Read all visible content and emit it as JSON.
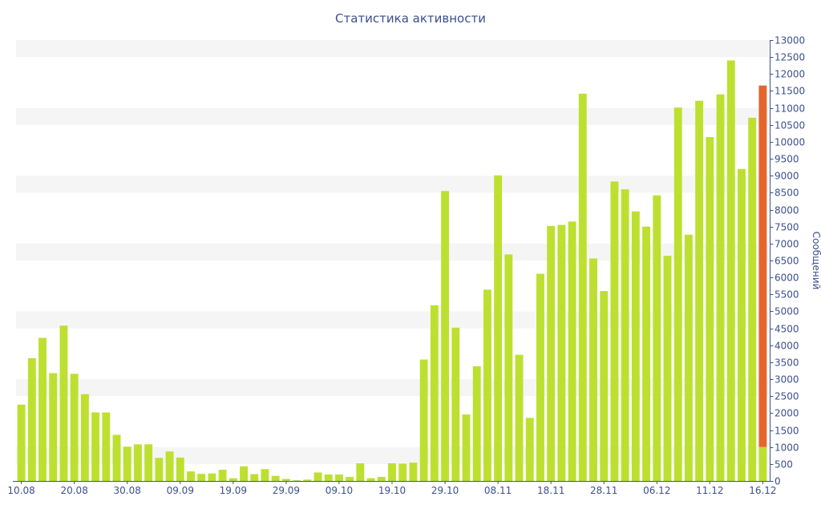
{
  "chart_data": {
    "type": "bar",
    "title": "Статистика активности",
    "xlabel": "",
    "ylabel": "Сообщений",
    "ylim": [
      0,
      13000
    ],
    "yticks": [
      0,
      500,
      1000,
      1500,
      2000,
      2500,
      3000,
      3500,
      4000,
      4500,
      5000,
      5500,
      6000,
      6500,
      7000,
      7500,
      8000,
      8500,
      9000,
      9500,
      10000,
      10500,
      11000,
      11500,
      12000,
      12500,
      13000
    ],
    "x_tick_labels": [
      "10.08",
      "20.08",
      "30.08",
      "09.09",
      "19.09",
      "29.09",
      "09.10",
      "19.10",
      "29.10",
      "08.11",
      "18.11",
      "28.11",
      "06.12",
      "11.12",
      "16.12"
    ],
    "x_tick_positions": [
      0,
      5,
      10,
      15,
      20,
      25,
      30,
      35,
      40,
      45,
      50,
      55,
      60,
      65,
      70
    ],
    "grid": "horizontal bands",
    "colors": {
      "bar": "#bde030",
      "highlight_base": "#bde030",
      "highlight_top": "#e5652d",
      "axis": "#3c4f8f",
      "band": "#f5f5f5"
    },
    "values": [
      2250,
      3620,
      4220,
      3180,
      4580,
      3160,
      2560,
      2020,
      2020,
      1360,
      1010,
      1080,
      1080,
      680,
      870,
      690,
      280,
      210,
      220,
      330,
      80,
      430,
      200,
      350,
      150,
      60,
      20,
      40,
      250,
      190,
      190,
      120,
      520,
      80,
      120,
      520,
      510,
      540,
      3580,
      5180,
      8550,
      4520,
      1960,
      3380,
      5640,
      9010,
      6680,
      3720,
      1860,
      6110,
      7520,
      7550,
      7650,
      11420,
      6560,
      5600,
      8830,
      8600,
      7950,
      7500,
      8420,
      6640,
      11010,
      7260,
      11210,
      10140,
      11400,
      12400,
      9200,
      10710,
      11660
    ],
    "highlight": {
      "index": 70,
      "base_value": 1000,
      "total_value": 11660
    }
  }
}
